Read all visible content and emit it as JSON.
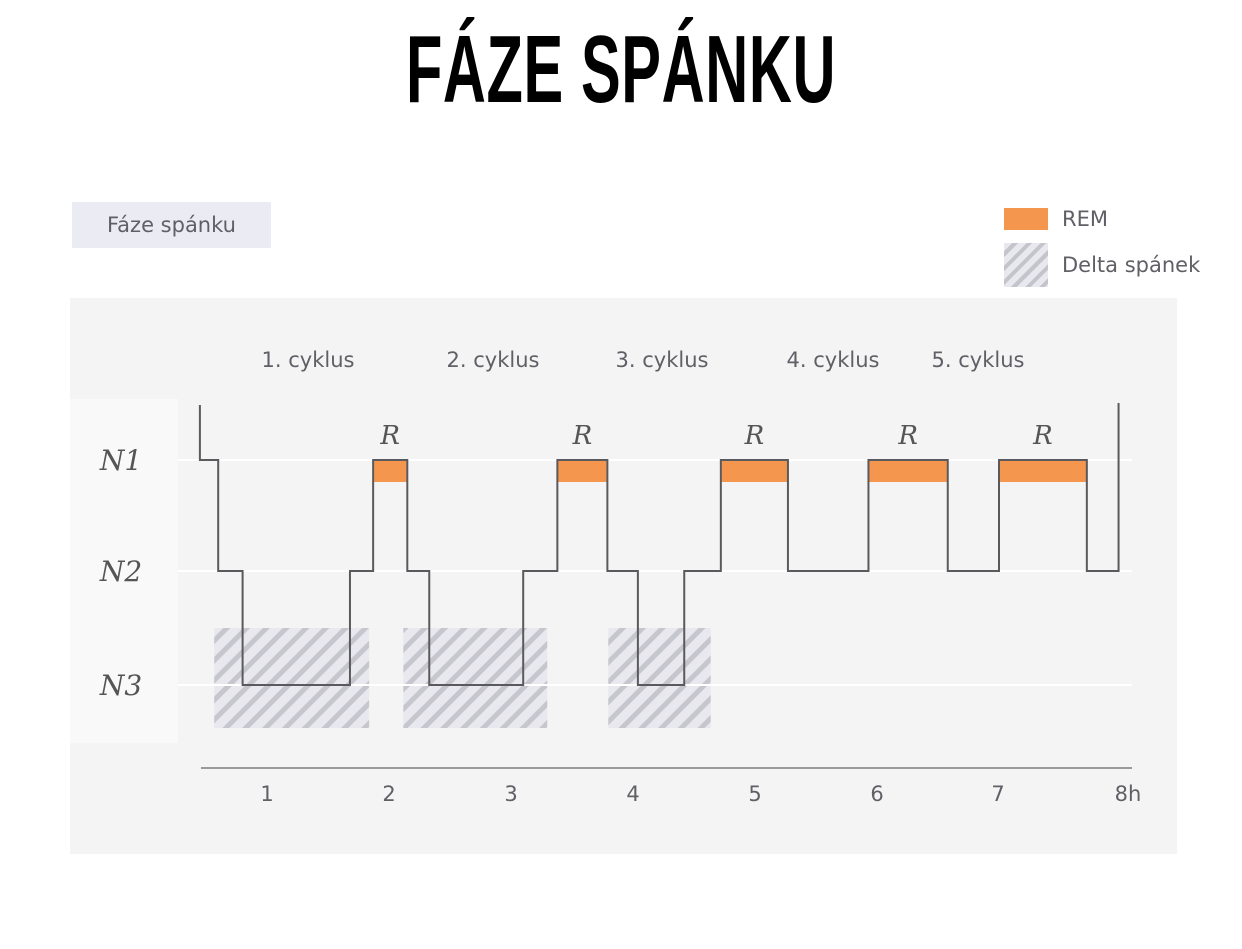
{
  "header": {
    "title": "FÁZE SPÁNKU"
  },
  "tag": {
    "label": "Fáze spánku"
  },
  "legend": {
    "items": [
      {
        "label": "REM",
        "color": "#f5964f",
        "kind": "solid"
      },
      {
        "label": "Delta spánek",
        "color": "#c4c4cc",
        "kind": "hatched"
      }
    ]
  },
  "chart_data": {
    "type": "line",
    "title": "Fáze spánku",
    "xlabel": "",
    "ylabel": "",
    "x_unit": "h",
    "xlim": [
      0.45,
      8
    ],
    "x_ticks": [
      "1",
      "2",
      "3",
      "4",
      "5",
      "6",
      "7",
      "8h"
    ],
    "y_categories": [
      "N1",
      "N2",
      "N3"
    ],
    "grid": true,
    "legend_position": "top-right",
    "cycles": [
      "1. cyklus",
      "2. cyklus",
      "3. cyklus",
      "4. cyklus",
      "5. cyklus"
    ],
    "hypnogram": [
      {
        "x0": 0.45,
        "x1": 0.6,
        "stage": "N1"
      },
      {
        "x0": 0.6,
        "x1": 0.8,
        "stage": "N2"
      },
      {
        "x0": 0.8,
        "x1": 1.68,
        "stage": "N3"
      },
      {
        "x0": 1.68,
        "x1": 1.87,
        "stage": "N2"
      },
      {
        "x0": 1.87,
        "x1": 2.15,
        "stage": "REM"
      },
      {
        "x0": 2.15,
        "x1": 2.33,
        "stage": "N2"
      },
      {
        "x0": 2.33,
        "x1": 3.1,
        "stage": "N3"
      },
      {
        "x0": 3.1,
        "x1": 3.38,
        "stage": "N2"
      },
      {
        "x0": 3.38,
        "x1": 3.79,
        "stage": "REM"
      },
      {
        "x0": 3.79,
        "x1": 4.04,
        "stage": "N2"
      },
      {
        "x0": 4.04,
        "x1": 4.42,
        "stage": "N3"
      },
      {
        "x0": 4.42,
        "x1": 4.72,
        "stage": "N2"
      },
      {
        "x0": 4.72,
        "x1": 5.27,
        "stage": "REM"
      },
      {
        "x0": 5.27,
        "x1": 5.93,
        "stage": "N2"
      },
      {
        "x0": 5.93,
        "x1": 6.58,
        "stage": "REM"
      },
      {
        "x0": 6.58,
        "x1": 7.0,
        "stage": "N2"
      },
      {
        "x0": 7.0,
        "x1": 7.72,
        "stage": "REM"
      },
      {
        "x0": 7.72,
        "x1": 7.98,
        "stage": "N2"
      }
    ],
    "rem_label": "R",
    "delta_regions": [
      {
        "x0": 0.6,
        "x1": 1.87
      },
      {
        "x0": 2.15,
        "x1": 3.33
      },
      {
        "x0": 3.83,
        "x1": 4.67
      }
    ]
  }
}
